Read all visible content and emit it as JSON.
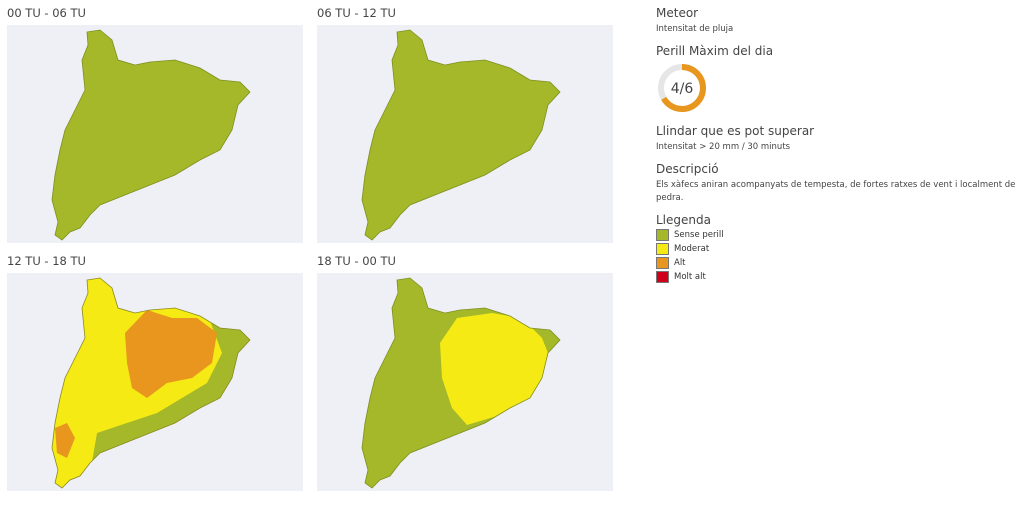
{
  "maps": [
    {
      "title": "00 TU - 06 TU"
    },
    {
      "title": "06 TU - 12 TU"
    },
    {
      "title": "12 TU - 18 TU"
    },
    {
      "title": "18 TU - 00 TU"
    }
  ],
  "sidebar": {
    "hazard_title": "Meteor",
    "hazard_subtitle": "Intensitat de pluja",
    "max_danger_title": "Perill Màxim del dia",
    "max_danger": {
      "level": 4,
      "max": 6,
      "label": "4/6"
    },
    "threshold_title": "Llindar que es pot superar",
    "threshold": "Intensitat > 20 mm / 30 minuts",
    "description_title": "Descripció",
    "description": "Els xàfecs aniran acompanyats de tempesta, de fortes ratxes de vent i localment de pedra.",
    "legend_title": "Llegenda",
    "legend": [
      {
        "label": "Sense perill",
        "color": "#a4b82a"
      },
      {
        "label": "Moderat",
        "color": "#f5ea14"
      },
      {
        "label": "Alt",
        "color": "#e8961e"
      },
      {
        "label": "Molt alt",
        "color": "#d0021b"
      }
    ]
  }
}
